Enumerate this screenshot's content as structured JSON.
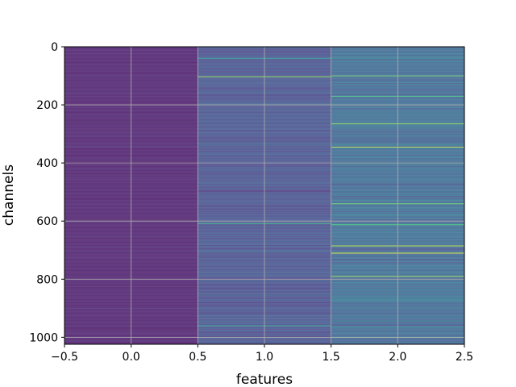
{
  "chart_data": {
    "type": "heatmap",
    "title": "",
    "xlabel": "features",
    "ylabel": "channels",
    "xlim": [
      -0.5,
      2.5
    ],
    "ylim": [
      1024,
      0
    ],
    "x_ticks": [
      "−0.5",
      "0.0",
      "0.5",
      "1.0",
      "1.5",
      "2.0",
      "2.5"
    ],
    "y_ticks": [
      "0",
      "200",
      "400",
      "600",
      "800",
      "1000"
    ],
    "x_tick_values": [
      -0.5,
      0.0,
      0.5,
      1.0,
      1.5,
      2.0,
      2.5
    ],
    "y_tick_values": [
      0,
      200,
      400,
      600,
      800,
      1000
    ],
    "grid": true,
    "colormap": "viridis",
    "columns": [
      {
        "feature": 0,
        "base_level": 0.08,
        "spread": 0.06
      },
      {
        "feature": 1,
        "base_level": 0.28,
        "spread": 0.16
      },
      {
        "feature": 2,
        "base_level": 0.4,
        "spread": 0.22
      }
    ],
    "bright_rows": [
      {
        "feature": 1,
        "channel": 103,
        "value": 0.85
      },
      {
        "feature": 1,
        "channel": 40,
        "value": 0.6
      },
      {
        "feature": 1,
        "channel": 608,
        "value": 0.7
      },
      {
        "feature": 1,
        "channel": 960,
        "value": 0.65
      },
      {
        "feature": 2,
        "channel": 100,
        "value": 0.8
      },
      {
        "feature": 2,
        "channel": 170,
        "value": 0.75
      },
      {
        "feature": 2,
        "channel": 265,
        "value": 0.85
      },
      {
        "feature": 2,
        "channel": 345,
        "value": 0.9
      },
      {
        "feature": 2,
        "channel": 540,
        "value": 0.8
      },
      {
        "feature": 2,
        "channel": 612,
        "value": 0.75
      },
      {
        "feature": 2,
        "channel": 685,
        "value": 0.9
      },
      {
        "feature": 2,
        "channel": 710,
        "value": 0.95
      },
      {
        "feature": 2,
        "channel": 790,
        "value": 0.85
      },
      {
        "feature": 2,
        "channel": 1000,
        "value": 0.75
      }
    ]
  }
}
